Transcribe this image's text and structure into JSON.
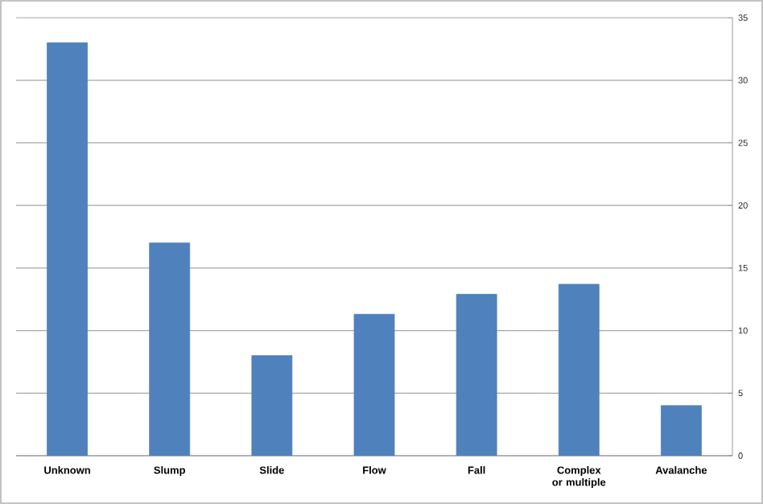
{
  "chart_data": {
    "type": "bar",
    "categories": [
      "Unknown",
      "Slump",
      "Slide",
      "Flow",
      "Fall",
      "Complex or multiple",
      "Avalanche"
    ],
    "values": [
      33,
      17,
      8,
      11.3,
      12.9,
      13.7,
      4
    ],
    "color": "#4f81bd",
    "ylim": [
      0,
      35
    ],
    "yticks": [
      0,
      5,
      10,
      15,
      20,
      25,
      30,
      35
    ],
    "grid": "y"
  }
}
